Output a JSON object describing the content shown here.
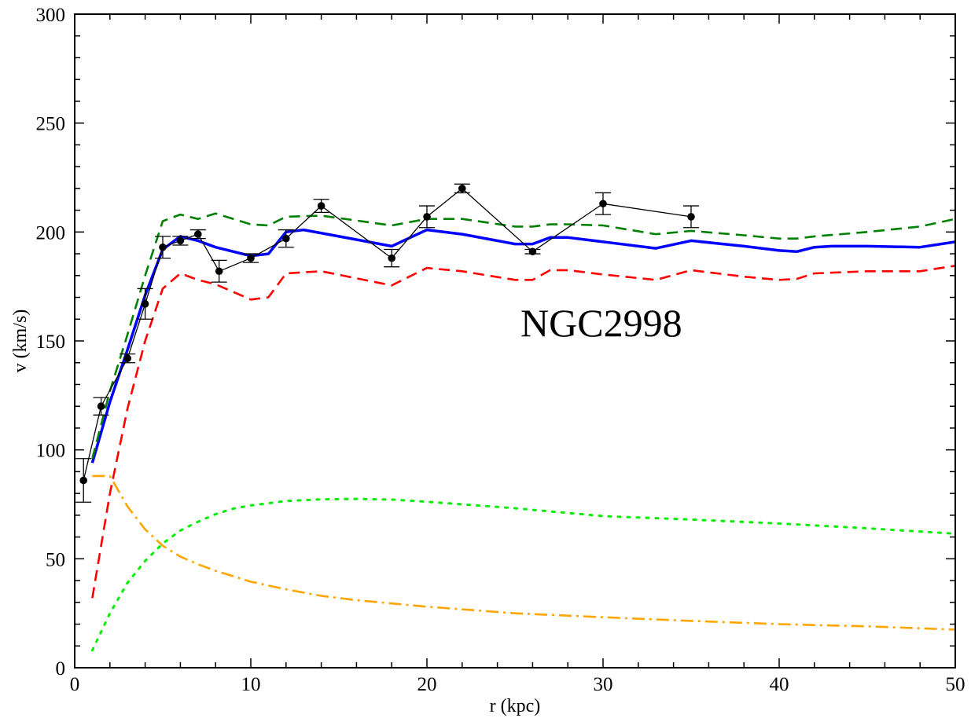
{
  "chart_data": {
    "type": "line",
    "annotation": "NGC2998",
    "xlabel": "r (kpc)",
    "ylabel": "v (km/s)",
    "xlim": [
      0,
      50
    ],
    "ylim": [
      0,
      300
    ],
    "xticks": [
      0,
      10,
      20,
      30,
      40,
      50
    ],
    "yticks": [
      0,
      50,
      100,
      150,
      200,
      250,
      300
    ],
    "grid": false,
    "legend": "none",
    "observed": {
      "color": "#000000",
      "r": [
        0.5,
        1.5,
        3,
        4,
        5,
        6,
        7,
        8.2,
        10,
        12,
        14,
        18,
        20,
        22,
        26,
        30,
        35
      ],
      "v": [
        86,
        120,
        142,
        167,
        193,
        196,
        199,
        182,
        188,
        197,
        212,
        188,
        207,
        220,
        191,
        213,
        207
      ],
      "err": [
        10,
        4,
        2,
        7,
        5,
        2,
        2,
        5,
        2,
        4,
        3,
        4,
        5,
        2,
        1,
        5,
        5
      ]
    },
    "series": [
      {
        "color": "#0000ff",
        "style": "solid",
        "x": [
          1,
          2,
          3,
          4,
          5,
          6,
          7,
          8,
          10,
          11,
          12,
          13,
          15,
          18,
          20,
          22,
          25,
          26,
          27,
          28,
          30,
          33,
          35,
          38,
          40,
          41,
          42,
          43,
          45,
          48,
          50
        ],
        "y": [
          94,
          122,
          146,
          171,
          192,
          198,
          196,
          193,
          189,
          190,
          200,
          201,
          198,
          193.5,
          201,
          199,
          194.5,
          194.5,
          197.5,
          197.5,
          195.5,
          192.5,
          196,
          193.5,
          191.5,
          191,
          193,
          193.5,
          193.5,
          193,
          195.5
        ]
      },
      {
        "color": "#ff0000",
        "style": "dashed",
        "x": [
          1,
          2,
          3,
          4,
          5,
          6,
          7,
          8,
          10,
          11,
          12,
          14,
          18,
          20,
          22,
          25,
          26,
          27,
          28,
          30,
          33,
          35,
          38,
          40,
          41,
          42,
          45,
          48,
          50
        ],
        "y": [
          32,
          80,
          119,
          150,
          174,
          181,
          178,
          176,
          169,
          170,
          181,
          182,
          175.5,
          183.5,
          182,
          178,
          178,
          182.5,
          182.5,
          180.5,
          178,
          182.5,
          179.5,
          178,
          178.5,
          181,
          182,
          182,
          184.5
        ]
      },
      {
        "color": "#008000",
        "style": "dashed",
        "x": [
          1,
          2,
          3,
          4,
          5,
          6,
          7,
          8,
          10,
          11,
          12,
          14,
          18,
          20,
          22,
          25,
          26,
          27,
          28,
          30,
          33,
          35,
          38,
          40,
          41,
          42,
          45,
          48,
          50
        ],
        "y": [
          96,
          127,
          153,
          180,
          205,
          208,
          206,
          208.5,
          203.5,
          203,
          207,
          207.5,
          203,
          206,
          206,
          202.5,
          202.5,
          203.5,
          203.5,
          203,
          199,
          200.5,
          198.5,
          197,
          197,
          198,
          200,
          202.5,
          206
        ]
      },
      {
        "color": "#00ee00",
        "style": "dotted",
        "x": [
          1,
          2,
          3,
          4,
          5,
          6,
          7,
          8,
          9,
          10,
          12,
          14,
          16,
          18,
          20,
          25,
          30,
          35,
          40,
          45,
          50
        ],
        "y": [
          8,
          25,
          39,
          49,
          57,
          63,
          67,
          70.5,
          73,
          74.5,
          76.5,
          77.3,
          77.5,
          77.2,
          76.2,
          73.2,
          69.6,
          68,
          66.2,
          64,
          61.5
        ]
      },
      {
        "color": "#ffa500",
        "style": "dashdot",
        "x": [
          1,
          2,
          3,
          4,
          5,
          6,
          7,
          8,
          10,
          12,
          14,
          16,
          18,
          20,
          25,
          30,
          35,
          40,
          45,
          50
        ],
        "y": [
          88,
          88,
          74,
          63.5,
          56,
          51,
          47.5,
          44.5,
          39.5,
          36,
          33,
          31,
          29.5,
          28,
          25,
          23.2,
          21.5,
          20,
          19,
          17.5
        ]
      }
    ]
  }
}
